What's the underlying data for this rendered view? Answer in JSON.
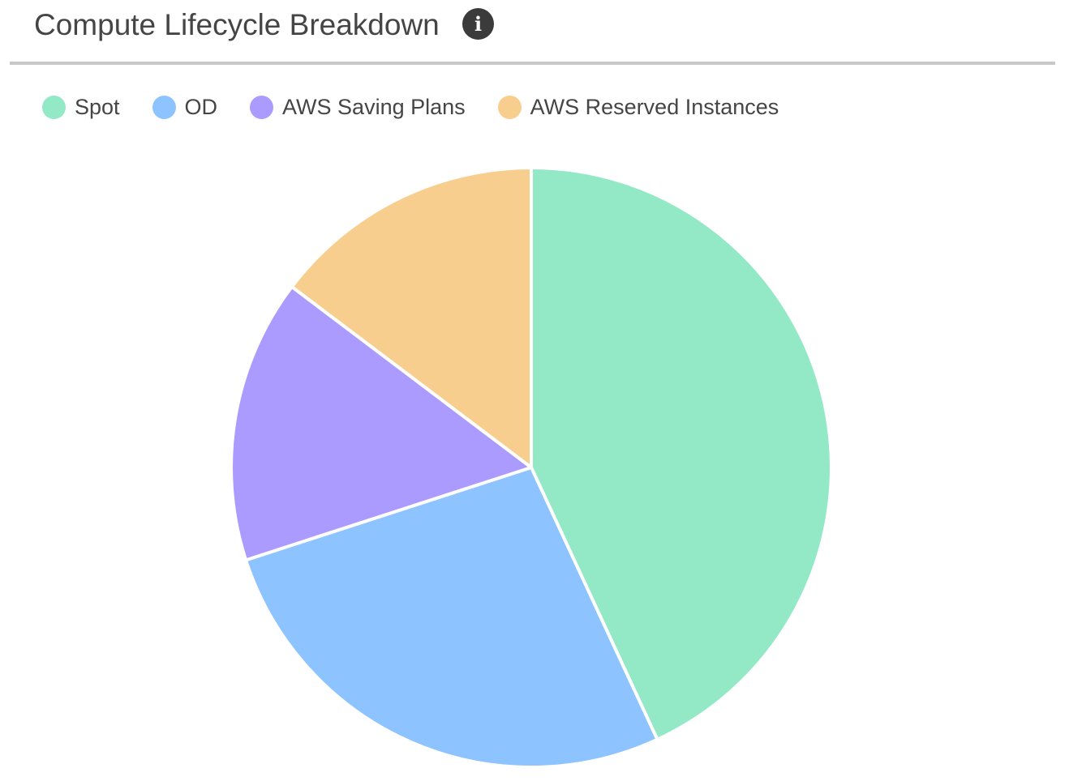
{
  "header": {
    "title": "Compute Lifecycle Breakdown",
    "info_icon": "info-icon"
  },
  "chart_data": {
    "type": "pie",
    "title": "Compute Lifecycle Breakdown",
    "legend_position": "top-left",
    "start_angle_deg": 0,
    "direction": "clockwise",
    "slices": [
      {
        "name": "Spot",
        "value": 43.1,
        "color": "#93E8C6"
      },
      {
        "name": "OD",
        "value": 26.9,
        "color": "#8DC3FE"
      },
      {
        "name": "AWS Saving Plans",
        "value": 15.3,
        "color": "#AB9BFE"
      },
      {
        "name": "AWS Reserved Instances",
        "value": 14.7,
        "color": "#F8CE8F"
      }
    ]
  }
}
